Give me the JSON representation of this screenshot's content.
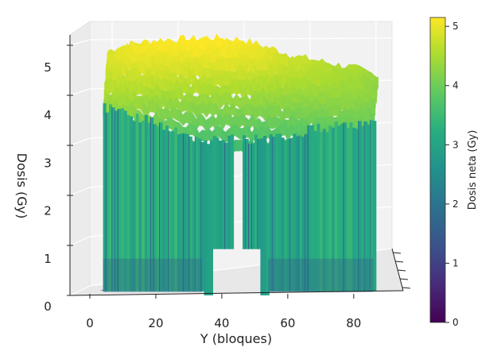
{
  "chart_data": {
    "type": "surface3d",
    "title": "",
    "xlabel": "Y (bloques)",
    "ylabel": "",
    "zlabel": "Dosis (Gy)",
    "x_ticks": [
      "0",
      "20",
      "40",
      "60",
      "80"
    ],
    "z_ticks": [
      "0",
      "1",
      "2",
      "3",
      "4",
      "5"
    ],
    "xlim": [
      0,
      88
    ],
    "zlim": [
      0,
      5.2
    ],
    "colormap": "viridis",
    "colorbar": {
      "label": "Dosis neta (Gy)",
      "ticks": [
        "0",
        "1",
        "2",
        "3",
        "4",
        "5"
      ],
      "range": [
        0,
        5.15
      ]
    },
    "profile": {
      "x": [
        4,
        10,
        20,
        30,
        34,
        45,
        54,
        60,
        70,
        80,
        86
      ],
      "dose": [
        4.85,
        5.0,
        5.1,
        5.12,
        5.15,
        5.1,
        4.9,
        4.75,
        4.6,
        4.45,
        4.3
      ],
      "edge_dose": [
        4.25,
        4.15,
        3.9,
        3.6,
        3.5,
        3.55,
        3.55,
        3.65,
        3.8,
        3.9,
        3.85
      ]
    },
    "low_dose_region": {
      "x": [
        34,
        54
      ],
      "dose": 0.1
    },
    "grid": true
  }
}
